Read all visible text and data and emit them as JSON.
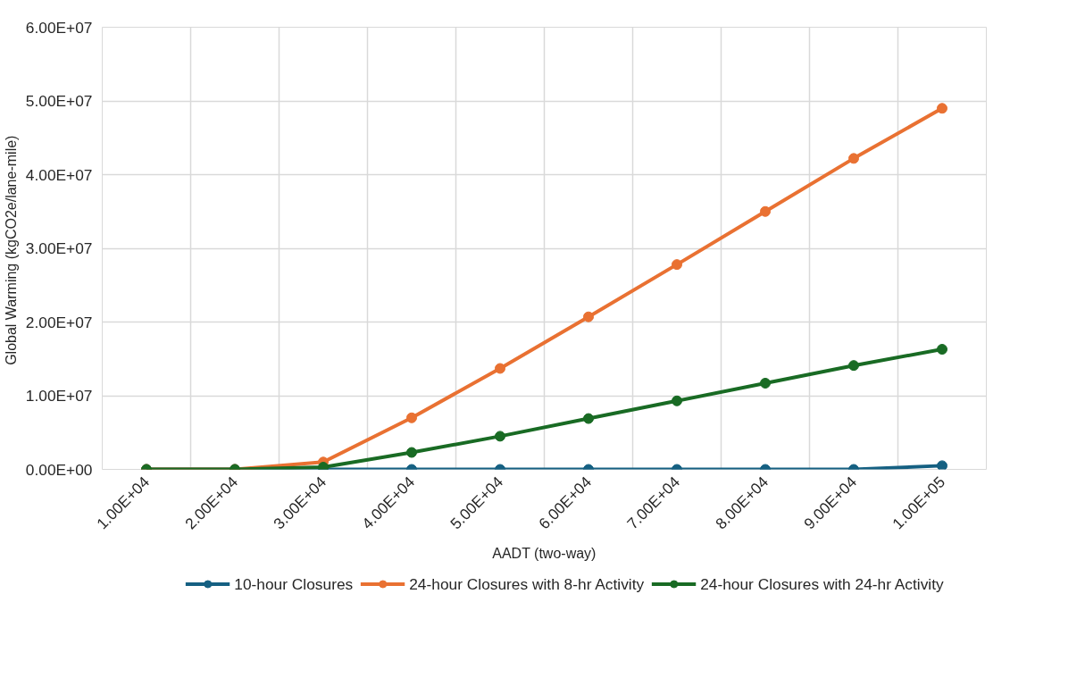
{
  "chart_data": {
    "type": "line",
    "xlabel": "AADT (two-way)",
    "ylabel": "Global Warming  (kgCO2e/lane-mile)",
    "categories": [
      "1.00E+04",
      "2.00E+04",
      "3.00E+04",
      "4.00E+04",
      "5.00E+04",
      "6.00E+04",
      "7.00E+04",
      "8.00E+04",
      "9.00E+04",
      "1.00E+05"
    ],
    "series": [
      {
        "name": "10-hour Closures",
        "color": "#156082",
        "values": [
          0,
          0,
          0,
          0,
          0,
          0,
          0,
          0,
          0,
          500000
        ]
      },
      {
        "name": "24-hour Closures with 8-hr Activity",
        "color": "#e97132",
        "values": [
          0,
          0,
          1000000,
          7000000,
          13700000,
          20700000,
          27800000,
          35000000,
          42200000,
          49000000
        ]
      },
      {
        "name": "24-hour Closures with 24-hr Activity",
        "color": "#196b24",
        "values": [
          0,
          0,
          300000,
          2300000,
          4500000,
          6900000,
          9300000,
          11700000,
          14100000,
          16300000
        ]
      }
    ],
    "ylim": [
      0,
      60000000
    ],
    "yticks": [
      {
        "value": 0,
        "label": "0.00E+00"
      },
      {
        "value": 10000000,
        "label": "1.00E+07"
      },
      {
        "value": 20000000,
        "label": "2.00E+07"
      },
      {
        "value": 30000000,
        "label": "3.00E+07"
      },
      {
        "value": 40000000,
        "label": "4.00E+07"
      },
      {
        "value": 50000000,
        "label": "5.00E+07"
      },
      {
        "value": 60000000,
        "label": "6.00E+07"
      }
    ],
    "grid": true,
    "legend": "bottom",
    "marker": "circle",
    "line_style": "solid"
  }
}
